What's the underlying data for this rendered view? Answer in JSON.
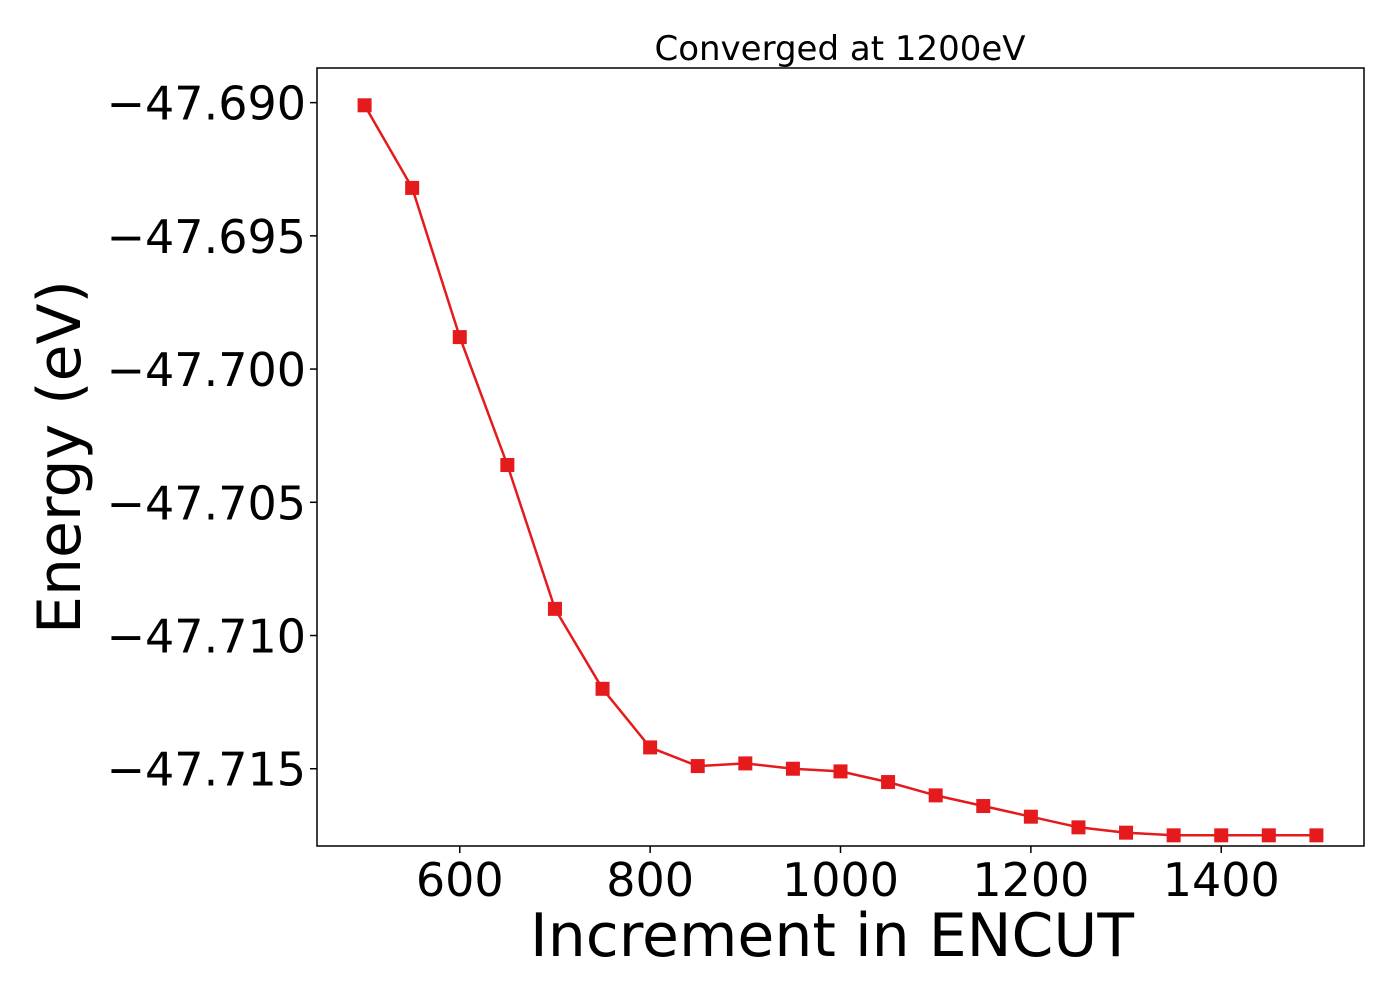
{
  "chart_data": {
    "type": "line",
    "title": "Converged at 1200eV",
    "xlabel": "Increment in ENCUT",
    "ylabel": "Energy (eV)",
    "xlim": [
      450,
      1550
    ],
    "ylim": [
      -47.7179,
      -47.6887
    ],
    "xticks": [
      600,
      800,
      1000,
      1200,
      1400
    ],
    "xtick_labels": [
      "600",
      "800",
      "1000",
      "1200",
      "1400"
    ],
    "yticks": [
      -47.69,
      -47.695,
      -47.7,
      -47.705,
      -47.71,
      -47.715
    ],
    "ytick_labels": [
      "−47.690",
      "−47.695",
      "−47.700",
      "−47.705",
      "−47.710",
      "−47.715"
    ],
    "grid": false,
    "marker": "square",
    "series": [
      {
        "color": "#e41a1c",
        "x": [
          500,
          550,
          600,
          650,
          700,
          750,
          800,
          850,
          900,
          950,
          1000,
          1050,
          1100,
          1150,
          1200,
          1250,
          1300,
          1350,
          1400,
          1450,
          1500
        ],
        "y": [
          -47.6901,
          -47.6932,
          -47.6988,
          -47.7036,
          -47.709,
          -47.712,
          -47.7142,
          -47.7149,
          -47.7148,
          -47.715,
          -47.7151,
          -47.7155,
          -47.716,
          -47.7164,
          -47.7168,
          -47.7172,
          -47.7174,
          -47.7175,
          -47.7175,
          -47.7175,
          -47.7175
        ]
      }
    ]
  }
}
